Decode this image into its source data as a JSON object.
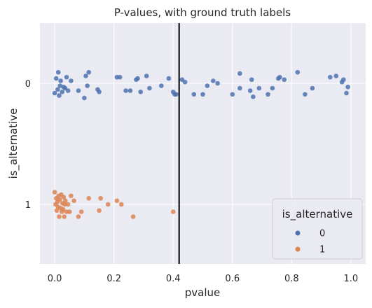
{
  "chart_data": {
    "type": "scatter",
    "title": "P-values, with ground truth labels",
    "xlabel": "pvalue",
    "ylabel": "is_alternative",
    "xlim": [
      -0.05,
      1.05
    ],
    "xticks": [
      0.0,
      0.2,
      0.4,
      0.6,
      0.8,
      1.0
    ],
    "xtick_labels": [
      "0.0",
      "0.2",
      "0.4",
      "0.6",
      "0.8",
      "1.0"
    ],
    "categories": [
      "0",
      "1"
    ],
    "grid": true,
    "background": "#eaeaf2",
    "threshold_line": {
      "x": 0.42,
      "color": "#000000"
    },
    "legend": {
      "title": "is_alternative",
      "placement": "lower-right",
      "entries": [
        {
          "label": "0",
          "color": "#4c72b0"
        },
        {
          "label": "1",
          "color": "#dd8452"
        }
      ]
    },
    "series": [
      {
        "name": "0",
        "color": "#4c72b0",
        "category": "0",
        "points": [
          [
            0.0,
            0.08
          ],
          [
            0.005,
            -0.04
          ],
          [
            0.01,
            0.05
          ],
          [
            0.012,
            -0.09
          ],
          [
            0.015,
            0.1
          ],
          [
            0.018,
            0.02
          ],
          [
            0.02,
            -0.02
          ],
          [
            0.025,
            0.07
          ],
          [
            0.03,
            0.03
          ],
          [
            0.035,
            0.04
          ],
          [
            0.04,
            -0.05
          ],
          [
            0.045,
            0.06
          ],
          [
            0.055,
            -0.02
          ],
          [
            0.08,
            0.06
          ],
          [
            0.1,
            0.12
          ],
          [
            0.105,
            -0.06
          ],
          [
            0.11,
            0.02
          ],
          [
            0.115,
            -0.09
          ],
          [
            0.145,
            0.05
          ],
          [
            0.15,
            0.07
          ],
          [
            0.21,
            -0.05
          ],
          [
            0.22,
            -0.05
          ],
          [
            0.24,
            0.06
          ],
          [
            0.255,
            0.06
          ],
          [
            0.275,
            -0.03
          ],
          [
            0.28,
            -0.04
          ],
          [
            0.29,
            0.07
          ],
          [
            0.31,
            -0.06
          ],
          [
            0.32,
            0.04
          ],
          [
            0.36,
            0.02
          ],
          [
            0.385,
            -0.04
          ],
          [
            0.4,
            0.07
          ],
          [
            0.405,
            0.09
          ],
          [
            0.41,
            0.09
          ],
          [
            0.43,
            -0.03
          ],
          [
            0.44,
            -0.01
          ],
          [
            0.47,
            0.09
          ],
          [
            0.5,
            0.09
          ],
          [
            0.515,
            0.02
          ],
          [
            0.535,
            -0.02
          ],
          [
            0.55,
            0.0
          ],
          [
            0.6,
            0.09
          ],
          [
            0.625,
            0.04
          ],
          [
            0.625,
            -0.08
          ],
          [
            0.66,
            0.06
          ],
          [
            0.665,
            -0.03
          ],
          [
            0.67,
            0.11
          ],
          [
            0.69,
            0.04
          ],
          [
            0.72,
            0.09
          ],
          [
            0.735,
            0.04
          ],
          [
            0.755,
            -0.04
          ],
          [
            0.76,
            -0.05
          ],
          [
            0.775,
            -0.03
          ],
          [
            0.82,
            -0.09
          ],
          [
            0.845,
            0.09
          ],
          [
            0.87,
            0.04
          ],
          [
            0.93,
            -0.05
          ],
          [
            0.95,
            -0.06
          ],
          [
            0.97,
            -0.01
          ],
          [
            0.975,
            -0.03
          ],
          [
            0.985,
            0.08
          ],
          [
            0.99,
            0.03
          ]
        ]
      },
      {
        "name": "1",
        "color": "#dd8452",
        "category": "1",
        "points": [
          [
            0.0,
            -0.1
          ],
          [
            0.003,
            0.0
          ],
          [
            0.005,
            -0.05
          ],
          [
            0.007,
            0.05
          ],
          [
            0.009,
            -0.02
          ],
          [
            0.011,
            0.02
          ],
          [
            0.013,
            -0.07
          ],
          [
            0.015,
            0.1
          ],
          [
            0.017,
            -0.04
          ],
          [
            0.02,
            0.03
          ],
          [
            0.022,
            -0.08
          ],
          [
            0.024,
            0.06
          ],
          [
            0.026,
            -0.01
          ],
          [
            0.028,
            0.04
          ],
          [
            0.03,
            -0.06
          ],
          [
            0.032,
            0.1
          ],
          [
            0.034,
            0.0
          ],
          [
            0.036,
            -0.03
          ],
          [
            0.04,
            0.06
          ],
          [
            0.045,
            0.0
          ],
          [
            0.05,
            0.06
          ],
          [
            0.055,
            -0.07
          ],
          [
            0.065,
            -0.03
          ],
          [
            0.08,
            0.1
          ],
          [
            0.09,
            0.06
          ],
          [
            0.115,
            -0.05
          ],
          [
            0.15,
            0.05
          ],
          [
            0.155,
            -0.05
          ],
          [
            0.18,
            0.0
          ],
          [
            0.21,
            -0.03
          ],
          [
            0.225,
            0.0
          ],
          [
            0.265,
            0.1
          ],
          [
            0.4,
            0.06
          ]
        ]
      }
    ]
  }
}
